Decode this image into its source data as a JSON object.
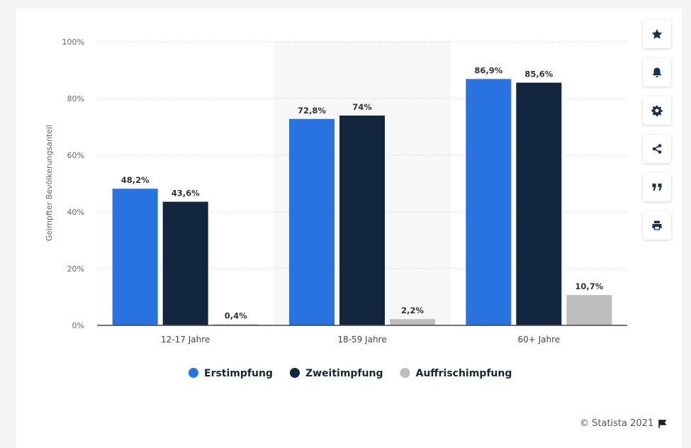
{
  "chart_data": {
    "type": "bar",
    "categories": [
      "12-17 Jahre",
      "18-59 Jahre",
      "60+ Jahre"
    ],
    "series": [
      {
        "name": "Erstimpfung",
        "color": "#2873e0",
        "values": [
          48.2,
          72.8,
          86.9
        ],
        "labels": [
          "48,2%",
          "72,8%",
          "86,9%"
        ]
      },
      {
        "name": "Zweitimpfung",
        "color": "#12263f",
        "values": [
          43.6,
          74,
          85.6
        ],
        "labels": [
          "43,6%",
          "74%",
          "85,6%"
        ]
      },
      {
        "name": "Auffrischimpfung",
        "color": "#bdbdbd",
        "values": [
          0.4,
          2.2,
          10.7
        ],
        "labels": [
          "0,4%",
          "2,2%",
          "10,7%"
        ]
      }
    ],
    "ylabel": "Geimpfter Bevölkerungsanteil",
    "xlabel": "",
    "ylim": [
      0,
      100
    ],
    "yticks": [
      0,
      20,
      40,
      60,
      80,
      100
    ],
    "ytick_labels": [
      "0%",
      "20%",
      "40%",
      "60%",
      "80%",
      "100%"
    ],
    "grid": true,
    "legend": "bottom"
  },
  "credit": {
    "text": "© Statista 2021"
  },
  "toolbar": {
    "buttons": [
      "star-icon",
      "bell-icon",
      "gear-icon",
      "share-icon",
      "quote-icon",
      "print-icon"
    ]
  }
}
